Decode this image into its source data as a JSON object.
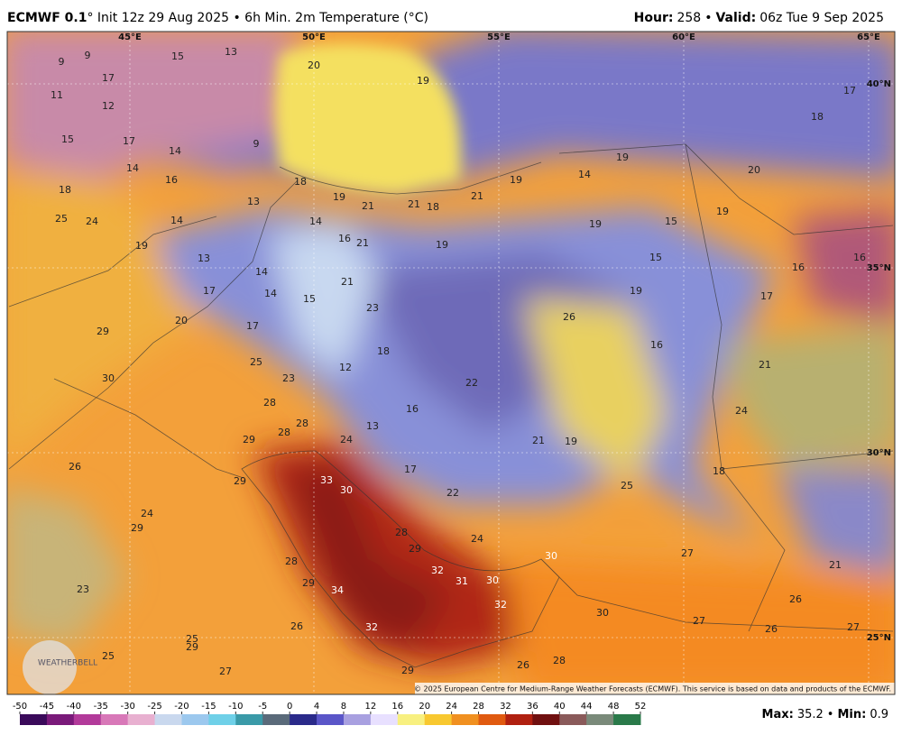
{
  "header": {
    "model": "ECMWF 0.1",
    "title": "° Init 12z 29 Aug 2025 • 6h Min. 2m Temperature (°C)",
    "hour_label": "Hour:",
    "hour": 258,
    "separator": "•",
    "valid_label": "Valid:",
    "valid": "06z Tue 9 Sep 2025"
  },
  "map": {
    "lon_labels": [
      "45°E",
      "50°E",
      "55°E",
      "60°E",
      "65°E"
    ],
    "lat_labels": [
      "40°N",
      "35°N",
      "30°N",
      "25°N"
    ],
    "labels": [
      9,
      9,
      15,
      13,
      17,
      12,
      11,
      15,
      17,
      14,
      9,
      14,
      16,
      18,
      18,
      19,
      21,
      21,
      18,
      21,
      19,
      14,
      19,
      20,
      17,
      18,
      19,
      20,
      13,
      14,
      25,
      24,
      14,
      16,
      21,
      19,
      19,
      15,
      19,
      15,
      16,
      16,
      17,
      19,
      13,
      14,
      21,
      17,
      14,
      15,
      23,
      20,
      17,
      29,
      26,
      19,
      16,
      18,
      25,
      12,
      23,
      21,
      30,
      22,
      28,
      16,
      24,
      28,
      13,
      28,
      29,
      24,
      21,
      19,
      26,
      17,
      18,
      33,
      30,
      29,
      22,
      25,
      24,
      24,
      29,
      28,
      29,
      28,
      32,
      30,
      31,
      30,
      27,
      21,
      29,
      34,
      32,
      23,
      26,
      30,
      32,
      26,
      27,
      26,
      27,
      25,
      29,
      25,
      27,
      26,
      28,
      29
    ],
    "logo": "WEATHERBELL",
    "copyright": "© 2025 European Centre for Medium-Range Weather Forecasts (ECMWF). This service is based on data and products of the ECMWF."
  },
  "colorbar": {
    "ticks": [
      -50,
      -45,
      -40,
      -35,
      -30,
      -25,
      -20,
      -15,
      -10,
      -5,
      0,
      4,
      8,
      12,
      16,
      20,
      24,
      28,
      32,
      36,
      40,
      44,
      48,
      52
    ],
    "colors": [
      "#3a0a5a",
      "#7a1a7a",
      "#b23a9a",
      "#d878b8",
      "#e8b0d0",
      "#c9d8ee",
      "#9cc8ee",
      "#6fd0e8",
      "#3a9aa8",
      "#5a6a7a",
      "#2a2a8a",
      "#5a56c8",
      "#a8a0e0",
      "#e8e0ff",
      "#f8f080",
      "#f8c830",
      "#f09020",
      "#e05a10",
      "#b02010",
      "#701010",
      "#8a5a5a",
      "#7a8a7a",
      "#2a7a4a"
    ]
  },
  "footer": {
    "max_label": "Max:",
    "max": 35.2,
    "separator": "•",
    "min_label": "Min:",
    "min": 0.9
  }
}
